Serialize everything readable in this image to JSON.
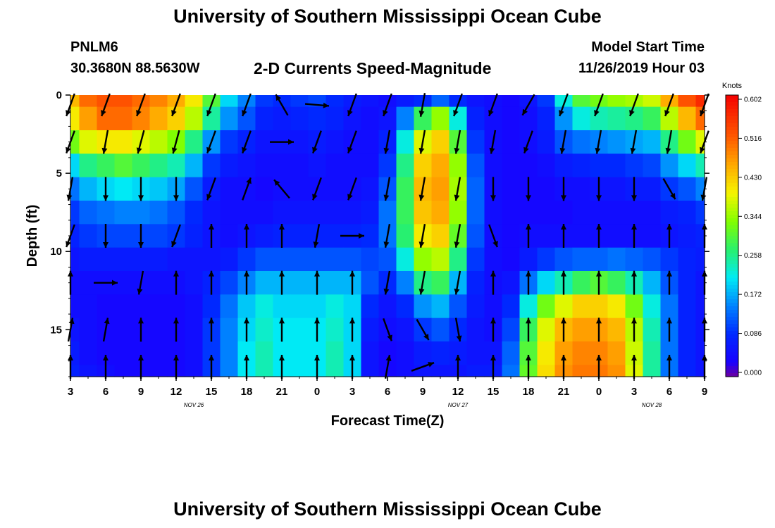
{
  "header": {
    "title": "University of Southern Mississippi Ocean Cube",
    "footer_title": "University of Southern Mississippi Ocean Cube",
    "station_id": "PNLM6",
    "station_location": "30.3680N 88.5630W",
    "subtitle": "2-D Currents Speed-Magnitude",
    "model_start_label": "Model Start Time",
    "model_start_value": "11/26/2019 Hour 03"
  },
  "chart_data": {
    "type": "heatmap",
    "title": "2-D Currents Speed-Magnitude",
    "xlabel": "Forecast Time(Z)",
    "ylabel": "Depth (ft)",
    "x_tick_labels": [
      "3",
      "6",
      "9",
      "12",
      "15",
      "18",
      "21",
      "0",
      "3",
      "6",
      "9",
      "12",
      "15",
      "18",
      "21",
      "0",
      "3",
      "6",
      "9"
    ],
    "x_range_hours": [
      0,
      54
    ],
    "date_labels": [
      {
        "text": "NOV 26",
        "hour": 10.5
      },
      {
        "text": "NOV 27",
        "hour": 33
      },
      {
        "text": "NOV 28",
        "hour": 49.5
      }
    ],
    "y_ticks": [
      0,
      5,
      10,
      15
    ],
    "y_range": [
      0,
      18
    ],
    "y_inverted": true,
    "colorbar": {
      "unit": "Knots",
      "min": 0.0,
      "max": 0.602,
      "tick_labels": [
        "0.602",
        "0.516",
        "0.430",
        "0.344",
        "0.258",
        "0.172",
        "0.086",
        "0.000"
      ]
    },
    "speed_field": {
      "time_hours": [
        0,
        1.5,
        3,
        4.5,
        6,
        7.5,
        9,
        10.5,
        12,
        13.5,
        15,
        16.5,
        18,
        19.5,
        21,
        22.5,
        24,
        25.5,
        27,
        28.5,
        30,
        31.5,
        33,
        34.5,
        36,
        37.5,
        39,
        40.5,
        42,
        43.5,
        45,
        46.5,
        48,
        49.5,
        51,
        52.5,
        54
      ],
      "depth_ft": [
        0,
        1.5,
        3,
        4.5,
        6,
        7.5,
        9,
        10.5,
        12,
        13.5,
        15,
        16.5,
        18
      ],
      "values_knots": [
        [
          0.44,
          0.5,
          0.52,
          0.52,
          0.5,
          0.48,
          0.45,
          0.4,
          0.3,
          0.2,
          0.15,
          0.1,
          0.09,
          0.1,
          0.11,
          0.09,
          0.07,
          0.06,
          0.05,
          0.07,
          0.09,
          0.13,
          0.09,
          0.06,
          0.05,
          0.04,
          0.06,
          0.1,
          0.22,
          0.3,
          0.32,
          0.34,
          0.35,
          0.37,
          0.45,
          0.52,
          0.56
        ],
        [
          0.4,
          0.46,
          0.5,
          0.5,
          0.48,
          0.45,
          0.42,
          0.36,
          0.25,
          0.16,
          0.12,
          0.08,
          0.07,
          0.08,
          0.09,
          0.08,
          0.06,
          0.05,
          0.06,
          0.15,
          0.28,
          0.34,
          0.22,
          0.08,
          0.05,
          0.04,
          0.05,
          0.08,
          0.16,
          0.22,
          0.24,
          0.25,
          0.26,
          0.28,
          0.36,
          0.44,
          0.5
        ],
        [
          0.32,
          0.38,
          0.4,
          0.4,
          0.38,
          0.36,
          0.33,
          0.26,
          0.16,
          0.1,
          0.08,
          0.06,
          0.06,
          0.06,
          0.07,
          0.06,
          0.05,
          0.05,
          0.08,
          0.22,
          0.38,
          0.42,
          0.3,
          0.1,
          0.05,
          0.04,
          0.05,
          0.07,
          0.12,
          0.14,
          0.15,
          0.16,
          0.17,
          0.18,
          0.26,
          0.32,
          0.38
        ],
        [
          0.2,
          0.26,
          0.28,
          0.3,
          0.28,
          0.26,
          0.24,
          0.18,
          0.1,
          0.07,
          0.06,
          0.05,
          0.05,
          0.05,
          0.06,
          0.05,
          0.05,
          0.05,
          0.1,
          0.26,
          0.42,
          0.45,
          0.34,
          0.12,
          0.05,
          0.04,
          0.04,
          0.05,
          0.07,
          0.08,
          0.09,
          0.09,
          0.1,
          0.11,
          0.16,
          0.2,
          0.24
        ],
        [
          0.14,
          0.18,
          0.2,
          0.21,
          0.2,
          0.19,
          0.17,
          0.12,
          0.07,
          0.05,
          0.05,
          0.04,
          0.05,
          0.05,
          0.05,
          0.05,
          0.05,
          0.06,
          0.12,
          0.28,
          0.44,
          0.46,
          0.35,
          0.13,
          0.05,
          0.04,
          0.04,
          0.04,
          0.05,
          0.05,
          0.06,
          0.06,
          0.07,
          0.07,
          0.1,
          0.12,
          0.15
        ],
        [
          0.1,
          0.13,
          0.14,
          0.15,
          0.15,
          0.14,
          0.12,
          0.09,
          0.06,
          0.05,
          0.05,
          0.05,
          0.06,
          0.06,
          0.06,
          0.06,
          0.06,
          0.07,
          0.14,
          0.28,
          0.43,
          0.45,
          0.34,
          0.13,
          0.05,
          0.04,
          0.04,
          0.04,
          0.04,
          0.05,
          0.05,
          0.05,
          0.05,
          0.05,
          0.07,
          0.08,
          0.1
        ],
        [
          0.08,
          0.1,
          0.11,
          0.11,
          0.11,
          0.11,
          0.1,
          0.08,
          0.06,
          0.05,
          0.06,
          0.07,
          0.08,
          0.08,
          0.08,
          0.08,
          0.08,
          0.09,
          0.14,
          0.27,
          0.4,
          0.42,
          0.31,
          0.12,
          0.05,
          0.04,
          0.05,
          0.05,
          0.05,
          0.05,
          0.05,
          0.05,
          0.05,
          0.05,
          0.06,
          0.07,
          0.08
        ],
        [
          0.06,
          0.07,
          0.07,
          0.07,
          0.07,
          0.07,
          0.06,
          0.06,
          0.06,
          0.07,
          0.1,
          0.12,
          0.12,
          0.12,
          0.12,
          0.12,
          0.12,
          0.11,
          0.12,
          0.22,
          0.34,
          0.36,
          0.26,
          0.1,
          0.05,
          0.04,
          0.07,
          0.1,
          0.12,
          0.13,
          0.13,
          0.14,
          0.13,
          0.12,
          0.1,
          0.08,
          0.07
        ],
        [
          0.05,
          0.05,
          0.05,
          0.05,
          0.05,
          0.05,
          0.05,
          0.06,
          0.08,
          0.11,
          0.15,
          0.18,
          0.18,
          0.18,
          0.18,
          0.18,
          0.18,
          0.12,
          0.09,
          0.15,
          0.26,
          0.28,
          0.18,
          0.08,
          0.05,
          0.06,
          0.14,
          0.2,
          0.24,
          0.28,
          0.3,
          0.28,
          0.24,
          0.18,
          0.12,
          0.08,
          0.06
        ],
        [
          0.05,
          0.05,
          0.04,
          0.04,
          0.04,
          0.04,
          0.04,
          0.05,
          0.09,
          0.14,
          0.19,
          0.22,
          0.2,
          0.2,
          0.2,
          0.22,
          0.2,
          0.09,
          0.06,
          0.09,
          0.16,
          0.18,
          0.12,
          0.07,
          0.05,
          0.09,
          0.22,
          0.32,
          0.38,
          0.42,
          0.42,
          0.4,
          0.32,
          0.22,
          0.14,
          0.08,
          0.06
        ],
        [
          0.06,
          0.05,
          0.04,
          0.04,
          0.04,
          0.04,
          0.04,
          0.05,
          0.1,
          0.15,
          0.2,
          0.23,
          0.21,
          0.21,
          0.21,
          0.23,
          0.2,
          0.07,
          0.05,
          0.06,
          0.1,
          0.12,
          0.09,
          0.06,
          0.05,
          0.11,
          0.28,
          0.38,
          0.44,
          0.46,
          0.46,
          0.44,
          0.36,
          0.24,
          0.14,
          0.08,
          0.06
        ],
        [
          0.07,
          0.05,
          0.04,
          0.04,
          0.04,
          0.04,
          0.04,
          0.05,
          0.1,
          0.15,
          0.21,
          0.24,
          0.21,
          0.21,
          0.21,
          0.24,
          0.2,
          0.06,
          0.04,
          0.05,
          0.07,
          0.08,
          0.07,
          0.06,
          0.06,
          0.13,
          0.3,
          0.4,
          0.46,
          0.48,
          0.48,
          0.46,
          0.37,
          0.25,
          0.14,
          0.08,
          0.06
        ],
        [
          0.08,
          0.06,
          0.05,
          0.04,
          0.04,
          0.04,
          0.04,
          0.05,
          0.1,
          0.15,
          0.21,
          0.24,
          0.21,
          0.21,
          0.21,
          0.24,
          0.2,
          0.06,
          0.04,
          0.05,
          0.06,
          0.06,
          0.06,
          0.07,
          0.07,
          0.14,
          0.31,
          0.41,
          0.47,
          0.49,
          0.49,
          0.47,
          0.38,
          0.25,
          0.14,
          0.08,
          0.06
        ]
      ]
    },
    "vectors": {
      "note": "arrow direction in degrees (0=up/north, clockwise), grid every 3 h by 3 ft",
      "time_hours": [
        0,
        3,
        6,
        9,
        12,
        15,
        18,
        21,
        24,
        27,
        30,
        33,
        36,
        39,
        42,
        45,
        48,
        51,
        54
      ],
      "depth_ft": [
        0,
        3,
        6,
        9,
        12,
        15,
        18
      ],
      "direction_deg": [
        [
          200,
          200,
          200,
          200,
          200,
          200,
          330,
          95,
          200,
          200,
          190,
          200,
          200,
          210,
          200,
          200,
          200,
          200,
          200
        ],
        [
          200,
          190,
          195,
          195,
          200,
          200,
          90,
          200,
          200,
          190,
          190,
          190,
          190,
          200,
          190,
          190,
          190,
          190,
          200
        ],
        [
          190,
          180,
          180,
          180,
          200,
          20,
          320,
          200,
          200,
          190,
          190,
          190,
          180,
          180,
          180,
          180,
          180,
          150,
          190
        ],
        [
          200,
          180,
          180,
          200,
          0,
          0,
          0,
          190,
          90,
          190,
          190,
          190,
          160,
          0,
          0,
          0,
          0,
          0,
          0
        ],
        [
          0,
          90,
          190,
          0,
          0,
          0,
          0,
          0,
          0,
          190,
          190,
          190,
          0,
          0,
          0,
          0,
          0,
          0,
          0
        ],
        [
          10,
          10,
          0,
          0,
          0,
          0,
          0,
          0,
          0,
          160,
          150,
          170,
          0,
          0,
          0,
          0,
          0,
          0,
          0
        ],
        [
          0,
          0,
          0,
          0,
          0,
          0,
          0,
          0,
          0,
          10,
          70,
          0,
          0,
          0,
          0,
          0,
          0,
          0,
          0
        ]
      ]
    }
  }
}
